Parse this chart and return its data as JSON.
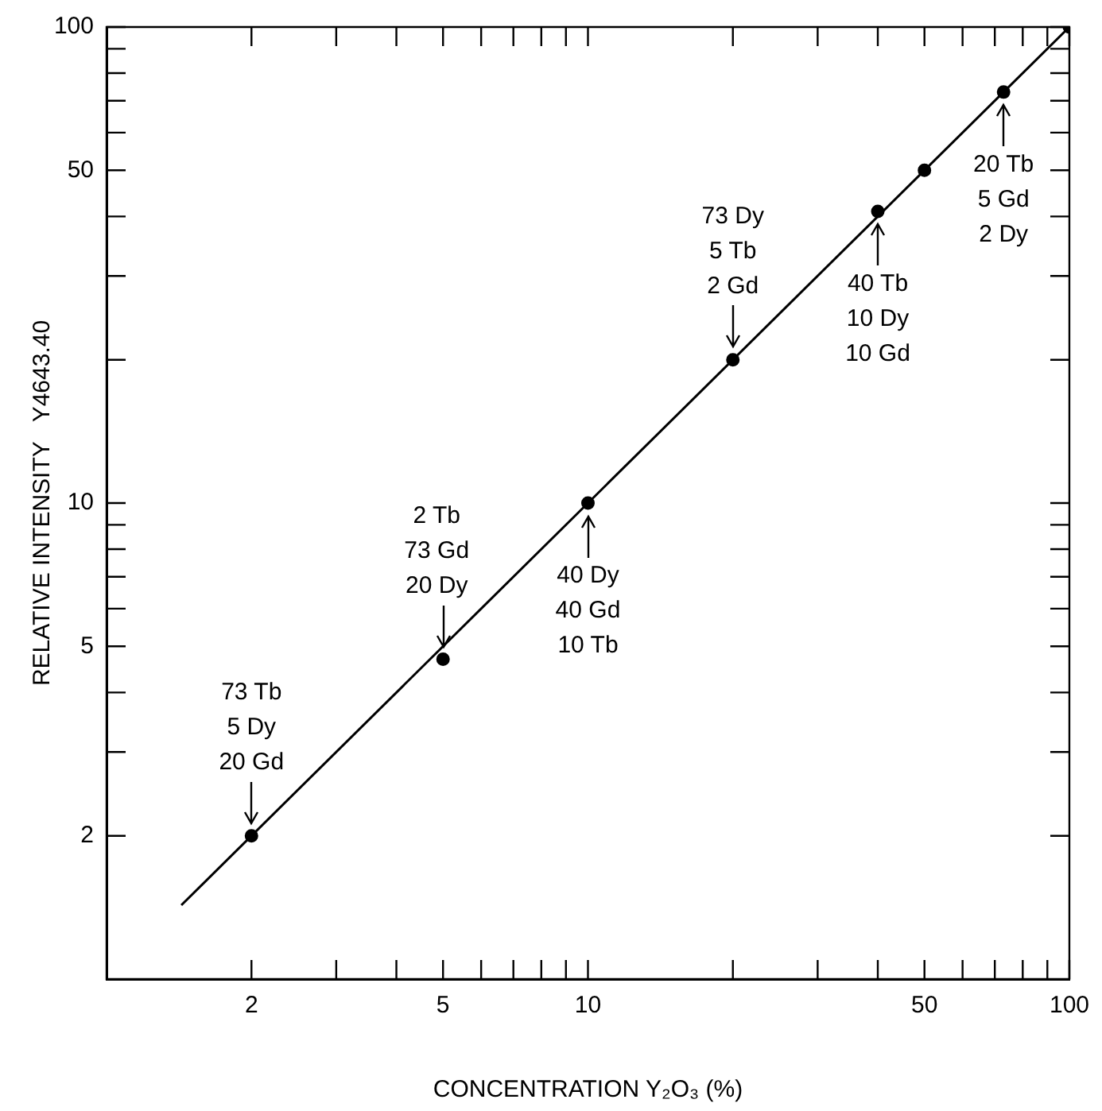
{
  "chart_data": {
    "type": "scatter",
    "xlabel": "CONCENTRATION Y₂O₃ (%)",
    "ylabel": "RELATIVE INTENSITY   Y4643.40",
    "log": "xy",
    "xlim": [
      1,
      100
    ],
    "ylim": [
      1,
      100
    ],
    "xticks": [
      2,
      {
        "value": 3,
        "label": null
      },
      {
        "value": 4,
        "label": null
      },
      5,
      {
        "value": 6,
        "label": null
      },
      {
        "value": 7,
        "label": null
      },
      {
        "value": 8,
        "label": null
      },
      {
        "value": 9,
        "label": null
      },
      10,
      {
        "value": 20,
        "label": null
      },
      {
        "value": 30,
        "label": null
      },
      {
        "value": 40,
        "label": null
      },
      50,
      {
        "value": 60,
        "label": null
      },
      {
        "value": 70,
        "label": null
      },
      {
        "value": 80,
        "label": null
      },
      {
        "value": 90,
        "label": null
      },
      100
    ],
    "yticks": [
      2,
      {
        "value": 3,
        "label": null
      },
      {
        "value": 4,
        "label": null
      },
      5,
      {
        "value": 6,
        "label": null
      },
      {
        "value": 7,
        "label": null
      },
      {
        "value": 8,
        "label": null
      },
      {
        "value": 9,
        "label": null
      },
      10,
      {
        "value": 20,
        "label": null
      },
      {
        "value": 30,
        "label": null
      },
      {
        "value": 40,
        "label": null
      },
      50,
      {
        "value": 60,
        "label": null
      },
      {
        "value": 70,
        "label": null
      },
      {
        "value": 80,
        "label": null
      },
      {
        "value": 90,
        "label": null
      },
      100
    ],
    "series": [
      {
        "marker": "circle",
        "color": "#000000",
        "x": [
          2,
          5,
          10,
          20,
          40,
          50,
          73,
          100
        ],
        "values": [
          2,
          4.7,
          10,
          20,
          41,
          50,
          73,
          100
        ]
      },
      {
        "type": "line",
        "marker": "none",
        "color": "#000000",
        "x": [
          1.43,
          100
        ],
        "values": [
          1.43,
          100
        ]
      }
    ],
    "annotations": [
      {
        "text": "73 Tb\n5 Dy\n20 Gd",
        "x": 2,
        "y": 2
      },
      {
        "text": "2 Tb\n73 Gd\n20 Dy",
        "x": 5,
        "y": 4.7
      },
      {
        "text": "40 Dy\n40 Gd\n10 Tb",
        "x": 10,
        "y": 10
      },
      {
        "text": "73 Dy\n5 Tb\n2 Gd",
        "x": 20,
        "y": 20
      },
      {
        "text": "40 Tb\n10 Dy\n10 Gd",
        "x": 40,
        "y": 41
      },
      {
        "text": "20 Tb\n5 Gd\n2 Dy",
        "x": 73,
        "y": 73
      }
    ]
  }
}
